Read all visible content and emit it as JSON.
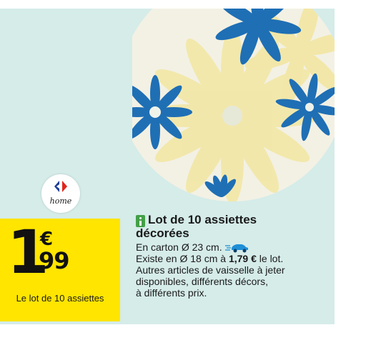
{
  "brand": {
    "name": "home"
  },
  "price": {
    "integer": "1",
    "currency": "€",
    "decimals": "99",
    "caption": "Le lot de 10 assiettes"
  },
  "product": {
    "title_line1": "Lot de 10 assiettes",
    "title_line2": "décorées",
    "line1": "En carton Ø 23 cm.",
    "line2_prefix": "Existe en Ø 18 cm à ",
    "line2_price": "1,79 €",
    "line2_suffix": " le lot.",
    "line3": "Autres articles de vaisselle à jeter",
    "line4": "disponibles, différents décors,",
    "line5": "à différents prix."
  },
  "icons": {
    "info": "info-icon",
    "delivery": "delivery-car-icon",
    "brand_logo": "carrefour-logo-icon"
  },
  "colors": {
    "background": "#d5ece9",
    "price_box": "#ffe500",
    "flower_blue": "#1f6fb5",
    "flower_yellow": "#f2e7a8",
    "info_green": "#43a047"
  }
}
